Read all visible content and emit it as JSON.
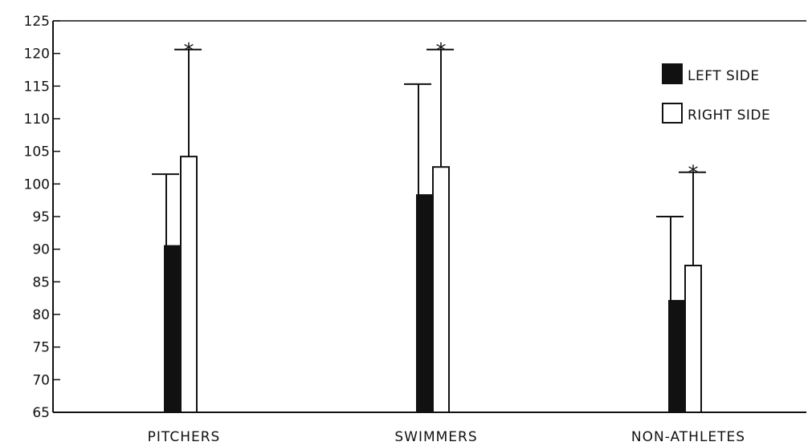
{
  "chart_data": {
    "type": "bar",
    "categories": [
      "PITCHERS",
      "SWIMMERS",
      "NON-ATHLETES"
    ],
    "series": [
      {
        "name": "LEFT SIDE",
        "values": [
          90.5,
          98.3,
          82.1
        ],
        "error_upper": [
          101.5,
          115.3,
          95.0
        ],
        "color": "#111111"
      },
      {
        "name": "RIGHT SIDE",
        "values": [
          104.2,
          102.6,
          87.5
        ],
        "error_upper": [
          120.6,
          120.6,
          101.8
        ],
        "color": "#ffffff"
      }
    ],
    "significance_marker": "*",
    "significant": [
      true,
      true,
      true
    ],
    "ylim": [
      65,
      125
    ],
    "yticks": [
      "125",
      "120",
      "115",
      "110",
      "105",
      "100",
      "95",
      "90",
      "85",
      "80",
      "75",
      "70",
      "65"
    ],
    "legend_position": "top-right",
    "grid": false,
    "title": "",
    "xlabel": "",
    "ylabel": ""
  }
}
